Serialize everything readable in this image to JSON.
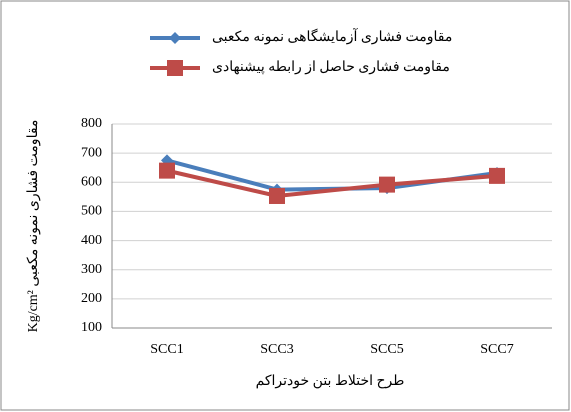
{
  "chart_data": {
    "type": "line",
    "y_label": "Kg/cm² مقاومت فشاری نمونه مکعبی",
    "x_label": "طرح اختلاط بتن خودتراکم",
    "categories": [
      "SCC1",
      "SCC3",
      "SCC5",
      "SCC7"
    ],
    "series": [
      {
        "name": "مقاومت فشاری آزمایشگاهی نمونه مکعبی",
        "color": "#4a7ebb",
        "marker": "diamond",
        "values": [
          675,
          575,
          580,
          632
        ]
      },
      {
        "name": "مقاومت فشاری حاصل از رابطه پیشنهادی",
        "color": "#be4b48",
        "marker": "square",
        "values": [
          640,
          553,
          592,
          622
        ]
      }
    ],
    "ylim": [
      100,
      800
    ],
    "yticks": [
      100,
      200,
      300,
      400,
      500,
      600,
      700,
      800
    ],
    "grid": true
  }
}
